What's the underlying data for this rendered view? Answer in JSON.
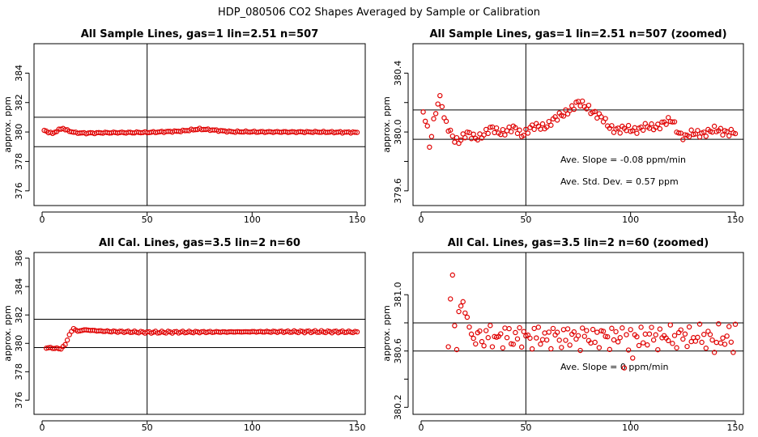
{
  "figure_title": "HDP_080506  CO2 Shapes Averaged by Sample or Calibration",
  "colors": {
    "points": "#e00000",
    "lines": "#000000",
    "background": "#ffffff"
  },
  "chart_data": [
    {
      "type": "scatter",
      "title": "All Sample Lines, gas=1 lin=2.51 n=507",
      "xlabel": "",
      "ylabel": "approx. ppm",
      "xlim": [
        0,
        150
      ],
      "ylim": [
        375,
        386
      ],
      "xticks": [
        0,
        50,
        100,
        150
      ],
      "yticks": [
        376,
        378,
        380,
        382,
        384
      ],
      "hlines": [
        381,
        379
      ],
      "vlines": [
        50
      ],
      "annotations": [],
      "series": [
        {
          "x": [],
          "y": []
        }
      ]
    },
    {
      "type": "scatter",
      "title": "All Sample Lines, gas=1 lin=2.51 n=507 (zoomed)",
      "xlabel": "",
      "ylabel": "approx. ppm",
      "xlim": [
        0,
        150
      ],
      "ylim": [
        379.5,
        380.6
      ],
      "xticks": [
        0,
        50,
        100,
        150
      ],
      "yticks": [
        379.6,
        379.8,
        380.0,
        380.2,
        380.4
      ],
      "ytick_labels": [
        "379.6",
        "",
        "380.0",
        "",
        "380.4"
      ],
      "hlines": [
        380.15,
        379.95
      ],
      "vlines": [
        50
      ],
      "annotations": [
        "Ave. Slope = -0.08 ppm/min",
        "Ave. Std. Dev. = 0.57 ppm"
      ],
      "series": [
        {
          "x": [],
          "y": []
        }
      ]
    },
    {
      "type": "scatter",
      "title": "All Cal. Lines, gas=3.5 lin=2 n=60",
      "xlabel": "",
      "ylabel": "approx. ppm",
      "xlim": [
        0,
        150
      ],
      "ylim": [
        375,
        386.4
      ],
      "xticks": [
        0,
        50,
        100,
        150
      ],
      "yticks": [
        376,
        378,
        380,
        382,
        384,
        386
      ],
      "hlines": [
        381.7,
        379.7
      ],
      "vlines": [
        50
      ],
      "annotations": [],
      "series": [
        {
          "x": [],
          "y": []
        }
      ]
    },
    {
      "type": "scatter",
      "title": "All Cal. Lines, gas=3.5 lin=2 n=60 (zoomed)",
      "xlabel": "",
      "ylabel": "approx. ppm",
      "xlim": [
        0,
        150
      ],
      "ylim": [
        380.15,
        381.3
      ],
      "xticks": [
        0,
        50,
        100,
        150
      ],
      "yticks": [
        380.2,
        380.4,
        380.6,
        380.8,
        381.0
      ],
      "ytick_labels": [
        "380.2",
        "",
        "380.6",
        "",
        "381.0"
      ],
      "hlines": [
        380.8,
        380.6
      ],
      "vlines": [
        50
      ],
      "annotations": [
        "Ave. Slope = 0 ppm/min"
      ],
      "series": [
        {
          "x": [],
          "y": []
        }
      ]
    }
  ]
}
